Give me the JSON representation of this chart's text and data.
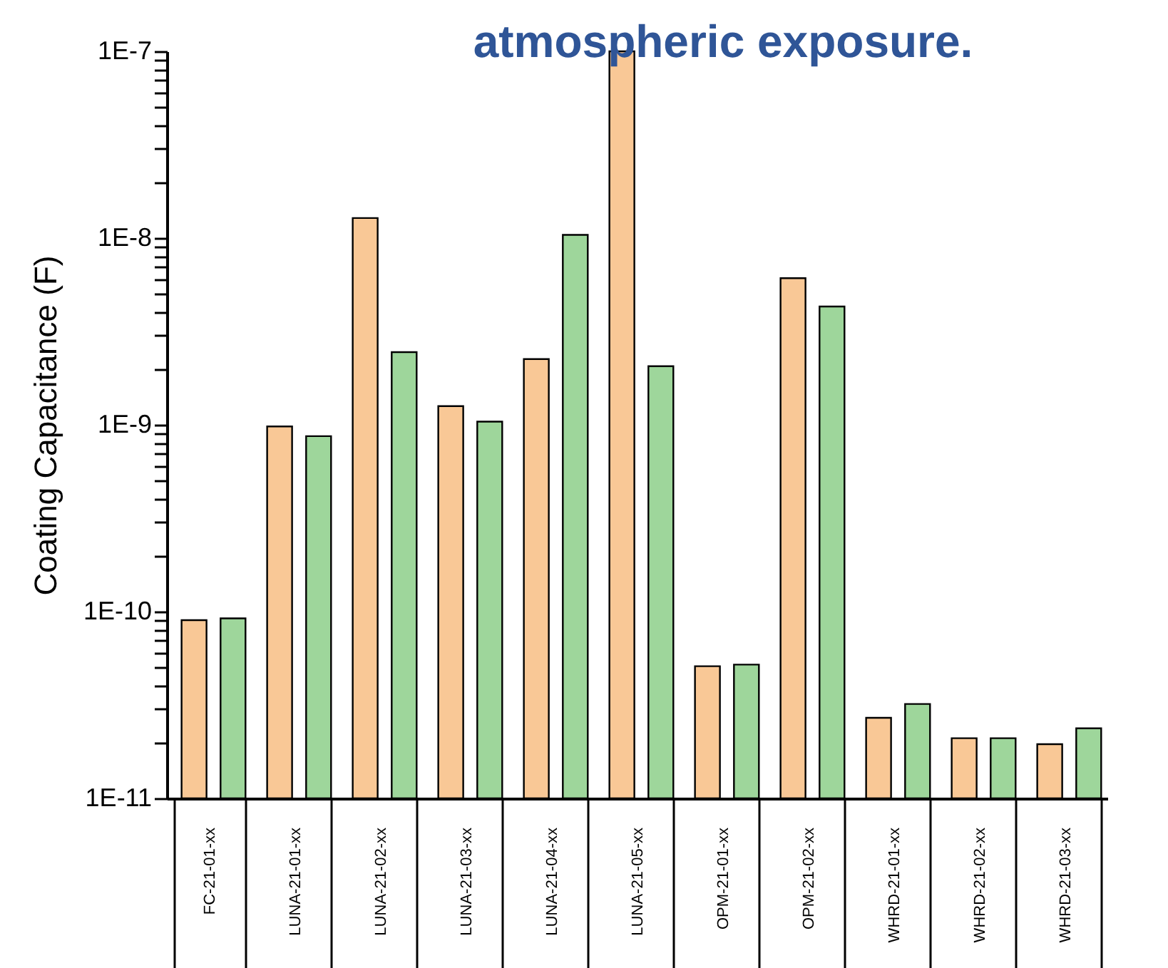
{
  "chart_data": {
    "type": "bar",
    "title": "atmospheric exposure.",
    "ylabel": "Coating Capacitance (F)",
    "categories": [
      "FC-21-01-xx",
      "LUNA-21-01-xx",
      "LUNA-21-02-xx",
      "LUNA-21-03-xx",
      "LUNA-21-04-xx",
      "LUNA-21-05-xx",
      "OPM-21-01-xx",
      "OPM-21-02-xx",
      "WHRD-21-01-xx",
      "WHRD-21-02-xx",
      "WHRD-21-03-xx"
    ],
    "series": [
      {
        "color": "#f9c896",
        "values": [
          9e-11,
          9.8e-10,
          1.28e-08,
          1.26e-09,
          2.25e-09,
          1e-07,
          5.1e-11,
          6.1e-09,
          2.7e-11,
          2.1e-11,
          1.95e-11
        ]
      },
      {
        "color": "#9ed69b",
        "values": [
          9.2e-11,
          8.7e-10,
          2.45e-09,
          1.04e-09,
          1.04e-08,
          2.06e-09,
          5.2e-11,
          4.3e-09,
          3.2e-11,
          2.1e-11,
          2.37e-11
        ]
      }
    ],
    "log": "y",
    "ylim": [
      1e-11,
      1e-07
    ],
    "yticks": [
      {
        "value": 1e-11,
        "label": "1E-11"
      },
      {
        "value": 2e-11,
        "label": null
      },
      {
        "value": 3e-11,
        "label": null
      },
      {
        "value": 4e-11,
        "label": null
      },
      {
        "value": 5e-11,
        "label": null
      },
      {
        "value": 6e-11,
        "label": null
      },
      {
        "value": 7e-11,
        "label": null
      },
      {
        "value": 8e-11,
        "label": null
      },
      {
        "value": 9e-11,
        "label": null
      },
      {
        "value": 1e-10,
        "label": "1E-10"
      },
      {
        "value": 2e-10,
        "label": null
      },
      {
        "value": 3e-10,
        "label": null
      },
      {
        "value": 4e-10,
        "label": null
      },
      {
        "value": 5e-10,
        "label": null
      },
      {
        "value": 6e-10,
        "label": null
      },
      {
        "value": 7e-10,
        "label": null
      },
      {
        "value": 8e-10,
        "label": null
      },
      {
        "value": 9e-10,
        "label": null
      },
      {
        "value": 1e-09,
        "label": "1E-9"
      },
      {
        "value": 2e-09,
        "label": null
      },
      {
        "value": 3e-09,
        "label": null
      },
      {
        "value": 4e-09,
        "label": null
      },
      {
        "value": 5e-09,
        "label": null
      },
      {
        "value": 6e-09,
        "label": null
      },
      {
        "value": 7e-09,
        "label": null
      },
      {
        "value": 8e-09,
        "label": null
      },
      {
        "value": 9e-09,
        "label": null
      },
      {
        "value": 1e-08,
        "label": "1E-8"
      },
      {
        "value": 2e-08,
        "label": null
      },
      {
        "value": 3e-08,
        "label": null
      },
      {
        "value": 4e-08,
        "label": null
      },
      {
        "value": 5e-08,
        "label": null
      },
      {
        "value": 6e-08,
        "label": null
      },
      {
        "value": 7e-08,
        "label": null
      },
      {
        "value": 8e-08,
        "label": null
      },
      {
        "value": 9e-08,
        "label": null
      },
      {
        "value": 1e-07,
        "label": "1E-7"
      }
    ],
    "grid": false,
    "legend": false
  }
}
